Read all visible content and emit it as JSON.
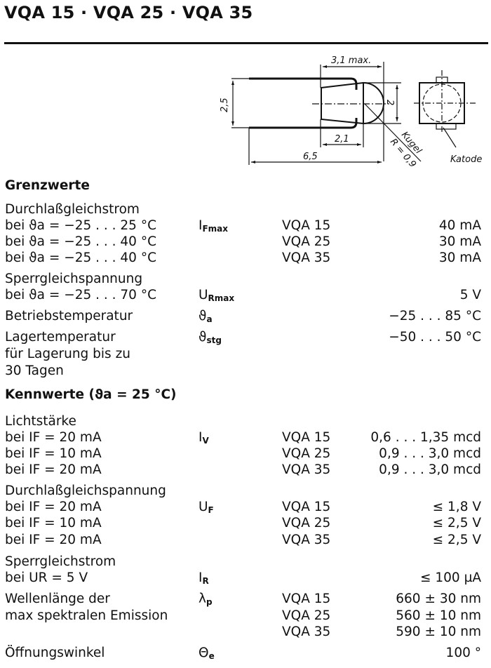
{
  "title": "VQA 15 · VQA 25 · VQA 35",
  "drawing": {
    "dim_length_max": "3,1 max.",
    "dim_height": "2,5",
    "dim_diameter": "2",
    "dim_body": "2,1",
    "dim_total": "6,5",
    "sphere_label": "Kugel",
    "radius_label": "R = 0,9",
    "cathode_label": "Katode"
  },
  "rows": [
    {
      "label": "Grenzwerte",
      "heading": true
    },
    {
      "label": "Durchlaßgleichstrom"
    },
    {
      "label": "bei ϑa = −25 . . . 25 °C",
      "symbol": "I",
      "sub": "Fmax",
      "model": "VQA 15",
      "value": "40 mA"
    },
    {
      "label": "bei ϑa = −25 . . . 40 °C",
      "model": "VQA 25",
      "value": "30 mA"
    },
    {
      "label": "bei ϑa = −25 . . . 40 °C",
      "model": "VQA 35",
      "value": "30 mA"
    },
    {
      "label": "Sperrgleichspannung"
    },
    {
      "label": "bei ϑa = −25 . . . 70 °C",
      "symbol": "U",
      "sub": "Rmax",
      "value": "5 V"
    },
    {
      "label": "Betriebstemperatur",
      "symbol": "ϑ",
      "sub": "a",
      "value": "−25 . . . 85 °C"
    },
    {
      "label": "Lagertemperatur",
      "symbol": "ϑ",
      "sub": "stg",
      "value": "−50 . . . 50 °C"
    },
    {
      "label": "für Lagerung bis zu"
    },
    {
      "label": "30 Tagen"
    },
    {
      "label": "Kennwerte (ϑa = 25 °C)",
      "heading": true
    },
    {
      "label": "Lichtstärke"
    },
    {
      "label": "bei IF = 20 mA",
      "symbol": "I",
      "sub": "V",
      "model": "VQA 15",
      "value": "0,6 . . . 1,35 mcd"
    },
    {
      "label": "bei IF = 10 mA",
      "model": "VQA 25",
      "value": "0,9 . . . 3,0 mcd"
    },
    {
      "label": "bei IF = 20 mA",
      "model": "VQA 35",
      "value": "0,9 . . . 3,0 mcd"
    },
    {
      "label": "Durchlaßgleichspannung"
    },
    {
      "label": "bei IF = 20 mA",
      "symbol": "U",
      "sub": "F",
      "model": "VQA 15",
      "value": "≤ 1,8 V"
    },
    {
      "label": "bei IF = 10 mA",
      "model": "VQA 25",
      "value": "≤ 2,5 V"
    },
    {
      "label": "bei IF = 20 mA",
      "model": "VQA 35",
      "value": "≤ 2,5 V"
    },
    {
      "label": "Sperrgleichstrom"
    },
    {
      "label": "bei UR = 5 V",
      "symbol": "I",
      "sub": "R",
      "value": "≤ 100 µA"
    },
    {
      "label": "Wellenlänge der",
      "symbol": "λ",
      "sub": "p",
      "model": "VQA 15",
      "value": "660 ± 30 nm"
    },
    {
      "label": "max spektralen Emission",
      "model": "VQA 25",
      "value": "560 ± 10 nm"
    },
    {
      "label": "",
      "model": "VQA 35",
      "value": "590 ± 10 nm"
    },
    {
      "label": "Öffnungswinkel",
      "symbol": "Θ",
      "sub": "e",
      "value": "100 °"
    }
  ]
}
